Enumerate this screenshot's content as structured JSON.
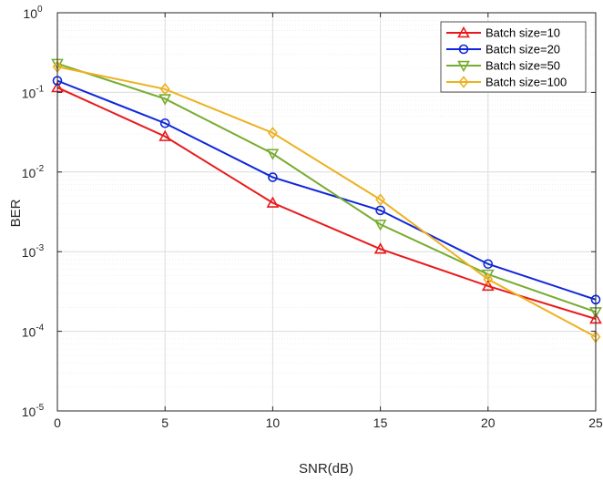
{
  "chart_data": {
    "type": "line",
    "title": "",
    "xlabel": "SNR(dB)",
    "ylabel": "BER",
    "xlim": [
      0,
      25
    ],
    "ylim": [
      1e-05,
      1
    ],
    "yscale": "log",
    "grid": true,
    "minor_grid": true,
    "legend_position": "top-right",
    "x": [
      0,
      5,
      10,
      15,
      20,
      25
    ],
    "x_ticks": [
      "0",
      "5",
      "10",
      "15",
      "20",
      "25"
    ],
    "y_ticks": [
      {
        "value": 1,
        "base": "10",
        "exp": "0"
      },
      {
        "value": 0.1,
        "base": "10",
        "exp": "-1"
      },
      {
        "value": 0.01,
        "base": "10",
        "exp": "-2"
      },
      {
        "value": 0.001,
        "base": "10",
        "exp": "-3"
      },
      {
        "value": 0.0001,
        "base": "10",
        "exp": "-4"
      },
      {
        "value": 1e-05,
        "base": "10",
        "exp": "-5"
      }
    ],
    "series": [
      {
        "name": "Batch size=10",
        "color": "#e8191b",
        "marker": "triangle-up",
        "values": [
          0.115,
          0.028,
          0.0041,
          0.00108,
          0.00037,
          0.000143
        ]
      },
      {
        "name": "Batch size=20",
        "color": "#0f27d9",
        "marker": "circle",
        "values": [
          0.14,
          0.041,
          0.0086,
          0.0033,
          0.0007,
          0.00025
        ]
      },
      {
        "name": "Batch size=50",
        "color": "#77ac30",
        "marker": "triangle-down",
        "values": [
          0.23,
          0.083,
          0.017,
          0.0022,
          0.00052,
          0.000175
        ]
      },
      {
        "name": "Batch size=100",
        "color": "#edb120",
        "marker": "diamond",
        "values": [
          0.21,
          0.11,
          0.031,
          0.0045,
          0.00045,
          8.5e-05
        ]
      }
    ]
  }
}
